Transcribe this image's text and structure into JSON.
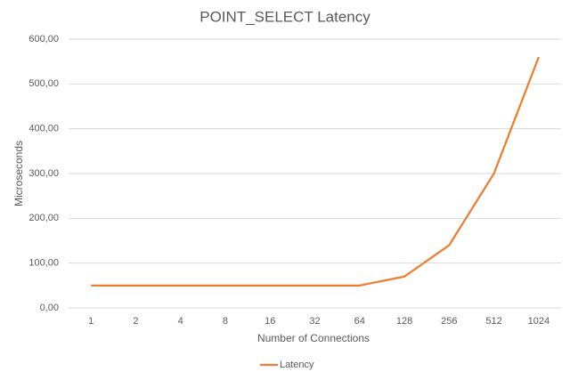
{
  "chart_data": {
    "type": "line",
    "title": "POINT_SELECT Latency",
    "x_label": "Number of Connections",
    "y_label": "Microseconds",
    "categories": [
      "1",
      "2",
      "4",
      "8",
      "16",
      "32",
      "64",
      "128",
      "256",
      "512",
      "1024"
    ],
    "series": [
      {
        "name": "Latency",
        "color": "#ed7d31",
        "values": [
          50,
          50,
          50,
          50,
          50,
          50,
          50,
          70,
          140,
          300,
          560
        ]
      }
    ],
    "ylim": [
      0,
      600
    ],
    "yticks": [
      {
        "value": 0,
        "label": "0,00"
      },
      {
        "value": 100,
        "label": "100,00"
      },
      {
        "value": 200,
        "label": "200,00"
      },
      {
        "value": 300,
        "label": "300,00"
      },
      {
        "value": 400,
        "label": "400,00"
      },
      {
        "value": 500,
        "label": "500,00"
      },
      {
        "value": 600,
        "label": "600,00"
      }
    ],
    "grid": true,
    "legend": "bottom"
  }
}
